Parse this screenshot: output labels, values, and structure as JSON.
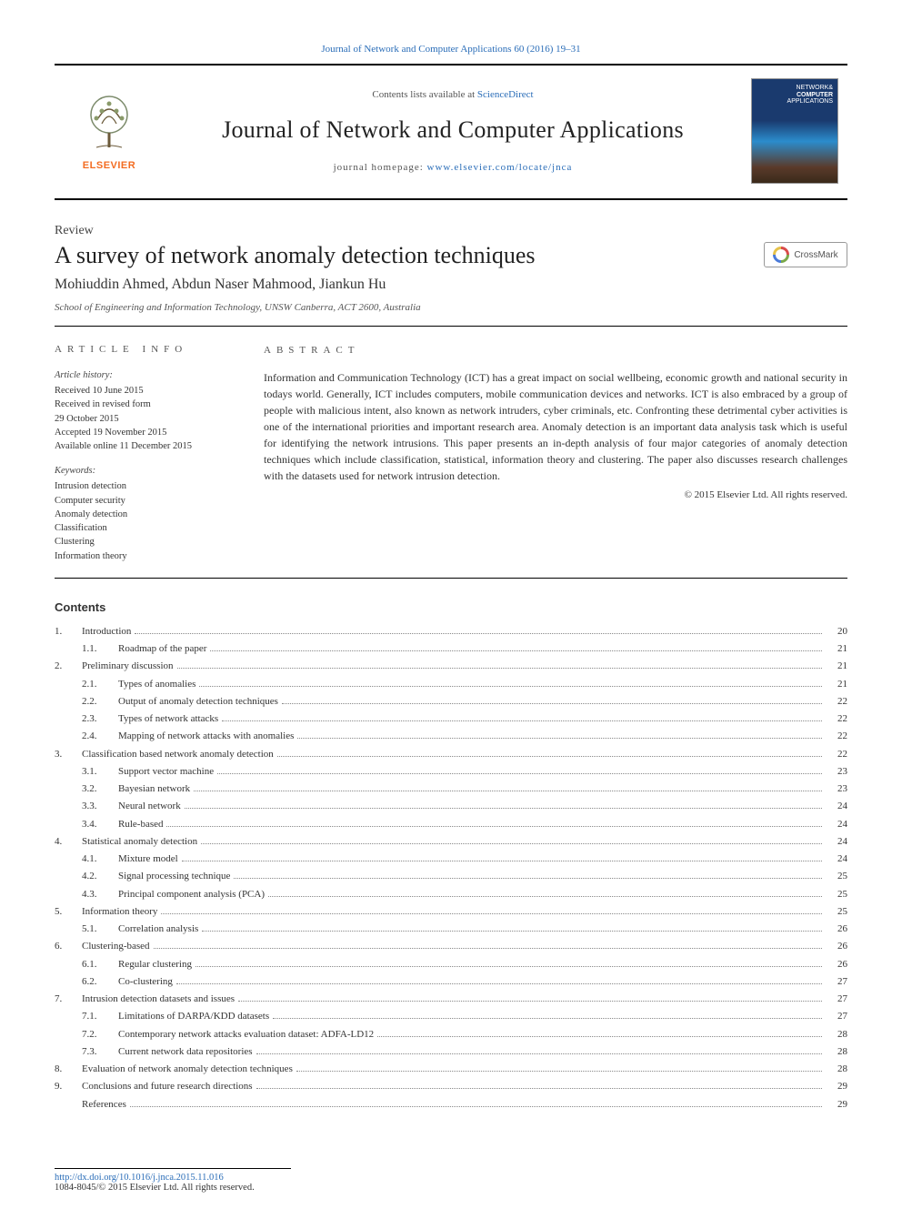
{
  "colors": {
    "link": "#2a6db8",
    "text": "#333333",
    "elsevier_orange": "#f36c21",
    "rule": "#000000",
    "dots": "#888888",
    "background": "#ffffff"
  },
  "typography": {
    "body_family": "Georgia, 'Times New Roman', serif",
    "journal_name_pt": 26,
    "title_pt": 26,
    "authors_pt": 16,
    "body_pt": 13,
    "abstract_pt": 12,
    "toc_pt": 11,
    "info_pt": 10.5
  },
  "top_citation": "Journal of Network and Computer Applications 60 (2016) 19–31",
  "header": {
    "contents_line_prefix": "Contents lists available at ",
    "contents_link": "ScienceDirect",
    "journal_name": "Journal of Network and Computer Applications",
    "homepage_prefix": "journal homepage: ",
    "homepage_url": "www.elsevier.com/locate/jnca",
    "elsevier": "ELSEVIER",
    "cover_lines": [
      "NETWORK&",
      "COMPUTER",
      "APPLICATIONS"
    ]
  },
  "article": {
    "type": "Review",
    "title": "A survey of network anomaly detection techniques",
    "crossmark": "CrossMark",
    "authors": "Mohiuddin Ahmed, Abdun Naser Mahmood, Jiankun Hu",
    "affiliation": "School of Engineering and Information Technology, UNSW Canberra, ACT 2600, Australia"
  },
  "info": {
    "heading": "article info",
    "history_label": "Article history:",
    "history": [
      "Received 10 June 2015",
      "Received in revised form",
      "29 October 2015",
      "Accepted 19 November 2015",
      "Available online 11 December 2015"
    ],
    "keywords_label": "Keywords:",
    "keywords": [
      "Intrusion detection",
      "Computer security",
      "Anomaly detection",
      "Classification",
      "Clustering",
      "Information theory"
    ]
  },
  "abstract": {
    "heading": "abstract",
    "text": "Information and Communication Technology (ICT) has a great impact on social wellbeing, economic growth and national security in todays world. Generally, ICT includes computers, mobile communication devices and networks. ICT is also embraced by a group of people with malicious intent, also known as network intruders, cyber criminals, etc. Confronting these detrimental cyber activities is one of the international priorities and important research area. Anomaly detection is an important data analysis task which is useful for identifying the network intrusions. This paper presents an in-depth analysis of four major categories of anomaly detection techniques which include classification, statistical, information theory and clustering. The paper also discusses research challenges with the datasets used for network intrusion detection.",
    "copyright": "© 2015 Elsevier Ltd. All rights reserved."
  },
  "contents_heading": "Contents",
  "toc": [
    {
      "n": "1.",
      "t": "Introduction",
      "p": "20",
      "sub": [
        {
          "n": "1.1.",
          "t": "Roadmap of the paper",
          "p": "21"
        }
      ]
    },
    {
      "n": "2.",
      "t": "Preliminary discussion",
      "p": "21",
      "sub": [
        {
          "n": "2.1.",
          "t": "Types of anomalies",
          "p": "21"
        },
        {
          "n": "2.2.",
          "t": "Output of anomaly detection techniques",
          "p": "22"
        },
        {
          "n": "2.3.",
          "t": "Types of network attacks",
          "p": "22"
        },
        {
          "n": "2.4.",
          "t": "Mapping of network attacks with anomalies",
          "p": "22"
        }
      ]
    },
    {
      "n": "3.",
      "t": "Classification based network anomaly detection",
      "p": "22",
      "sub": [
        {
          "n": "3.1.",
          "t": "Support vector machine",
          "p": "23"
        },
        {
          "n": "3.2.",
          "t": "Bayesian network",
          "p": "23"
        },
        {
          "n": "3.3.",
          "t": "Neural network",
          "p": "24"
        },
        {
          "n": "3.4.",
          "t": "Rule-based",
          "p": "24"
        }
      ]
    },
    {
      "n": "4.",
      "t": "Statistical anomaly detection",
      "p": "24",
      "sub": [
        {
          "n": "4.1.",
          "t": "Mixture model",
          "p": "24"
        },
        {
          "n": "4.2.",
          "t": "Signal processing technique",
          "p": "25"
        },
        {
          "n": "4.3.",
          "t": "Principal component analysis (PCA)",
          "p": "25"
        }
      ]
    },
    {
      "n": "5.",
      "t": "Information theory",
      "p": "25",
      "sub": [
        {
          "n": "5.1.",
          "t": "Correlation analysis",
          "p": "26"
        }
      ]
    },
    {
      "n": "6.",
      "t": "Clustering-based",
      "p": "26",
      "sub": [
        {
          "n": "6.1.",
          "t": "Regular clustering",
          "p": "26"
        },
        {
          "n": "6.2.",
          "t": "Co-clustering",
          "p": "27"
        }
      ]
    },
    {
      "n": "7.",
      "t": "Intrusion detection datasets and issues",
      "p": "27",
      "sub": [
        {
          "n": "7.1.",
          "t": "Limitations of DARPA/KDD datasets",
          "p": "27"
        },
        {
          "n": "7.2.",
          "t": "Contemporary network attacks evaluation dataset: ADFA-LD12",
          "p": "28"
        },
        {
          "n": "7.3.",
          "t": "Current network data repositories",
          "p": "28"
        }
      ]
    },
    {
      "n": "8.",
      "t": "Evaluation of network anomaly detection techniques",
      "p": "28",
      "sub": []
    },
    {
      "n": "9.",
      "t": "Conclusions and future research directions",
      "p": "29",
      "sub": []
    },
    {
      "n": "",
      "t": "References",
      "p": "29",
      "sub": []
    }
  ],
  "footer": {
    "doi": "http://dx.doi.org/10.1016/j.jnca.2015.11.016",
    "issn_line": "1084-8045/© 2015 Elsevier Ltd. All rights reserved."
  }
}
